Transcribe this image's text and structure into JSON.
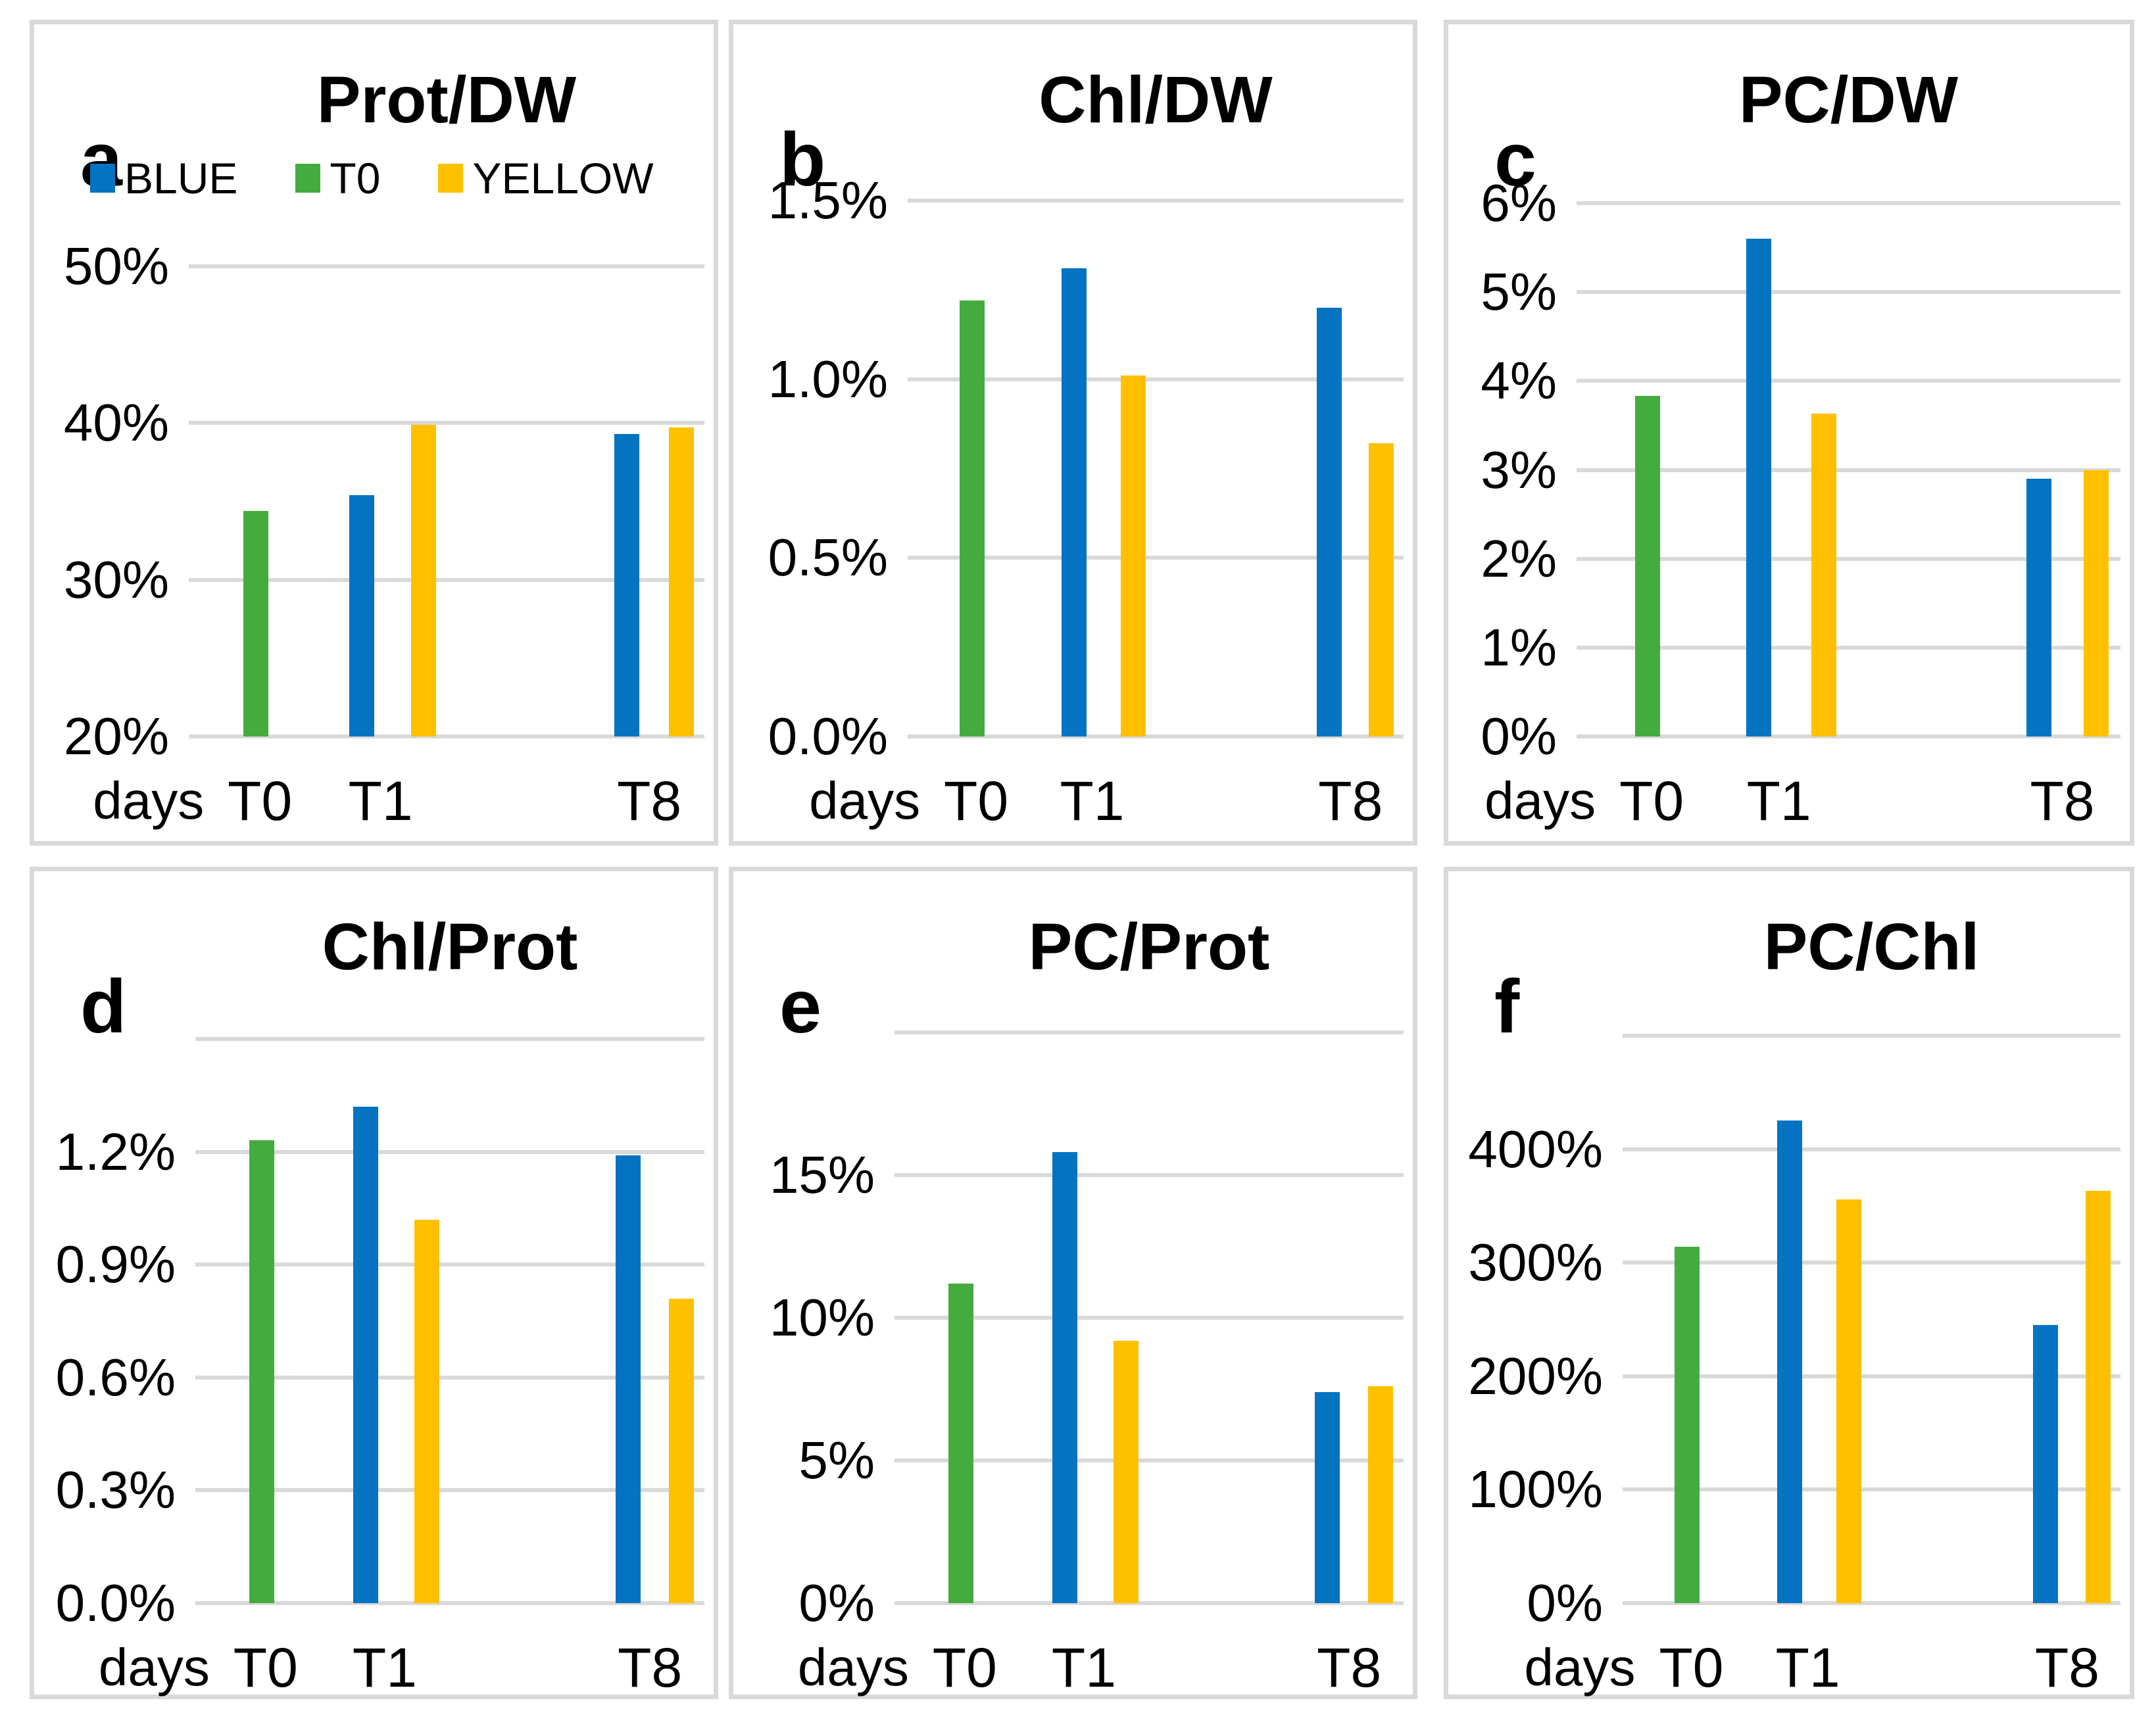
{
  "figure": {
    "background": "#FFFFFF",
    "panel_border_color": "#D9D9D9",
    "gridline_color": "#D9D9D9",
    "text_color": "#000000"
  },
  "series_colors": {
    "BLUE": "#0473C2",
    "T0": "#44AC3F",
    "YELLOW": "#FFC000"
  },
  "legend": {
    "items": [
      {
        "label": "BLUE",
        "series": "BLUE"
      },
      {
        "label": "T0",
        "series": "T0"
      },
      {
        "label": "YELLOW",
        "series": "YELLOW"
      }
    ]
  },
  "chart_data": [
    {
      "id": "a",
      "panel_label": "a",
      "type": "bar",
      "title": "Prot/DW",
      "x_axis_label": "days",
      "categories": [
        "T0",
        "T1",
        "T8"
      ],
      "ylim": [
        20,
        50
      ],
      "grid": true,
      "has_legend": true,
      "yticks": [
        {
          "value": 20,
          "label": "20%"
        },
        {
          "value": 30,
          "label": "30%"
        },
        {
          "value": 40,
          "label": "40%"
        },
        {
          "value": 50,
          "label": "50%"
        }
      ],
      "bars": [
        {
          "series": "T0",
          "category": "T0",
          "value": 34.4
        },
        {
          "series": "BLUE",
          "category": "T1",
          "value": 35.4
        },
        {
          "series": "YELLOW",
          "category": "T1",
          "value": 39.9
        },
        {
          "series": "BLUE",
          "category": "T8",
          "value": 39.3
        },
        {
          "series": "YELLOW",
          "category": "T8",
          "value": 39.7
        }
      ]
    },
    {
      "id": "b",
      "panel_label": "b",
      "type": "bar",
      "title": "Chl/DW",
      "x_axis_label": "days",
      "categories": [
        "T0",
        "T1",
        "T8"
      ],
      "ylim": [
        0,
        1.5
      ],
      "grid": true,
      "has_legend": false,
      "yticks": [
        {
          "value": 0,
          "label": "0.0%"
        },
        {
          "value": 0.5,
          "label": "0.5%"
        },
        {
          "value": 1.0,
          "label": "1.0%"
        },
        {
          "value": 1.5,
          "label": "1.5%"
        }
      ],
      "bars": [
        {
          "series": "T0",
          "category": "T0",
          "value": 1.22
        },
        {
          "series": "BLUE",
          "category": "T1",
          "value": 1.31
        },
        {
          "series": "YELLOW",
          "category": "T1",
          "value": 1.01
        },
        {
          "series": "BLUE",
          "category": "T8",
          "value": 1.2
        },
        {
          "series": "YELLOW",
          "category": "T8",
          "value": 0.82
        }
      ]
    },
    {
      "id": "c",
      "panel_label": "c",
      "type": "bar",
      "title": "PC/DW",
      "x_axis_label": "days",
      "categories": [
        "T0",
        "T1",
        "T8"
      ],
      "ylim": [
        0,
        6
      ],
      "grid": true,
      "has_legend": false,
      "yticks": [
        {
          "value": 0,
          "label": "0%"
        },
        {
          "value": 1,
          "label": "1%"
        },
        {
          "value": 2,
          "label": "2%"
        },
        {
          "value": 3,
          "label": "3%"
        },
        {
          "value": 4,
          "label": "4%"
        },
        {
          "value": 5,
          "label": "5%"
        },
        {
          "value": 6,
          "label": "6%"
        }
      ],
      "bars": [
        {
          "series": "T0",
          "category": "T0",
          "value": 3.83
        },
        {
          "series": "BLUE",
          "category": "T1",
          "value": 5.6
        },
        {
          "series": "YELLOW",
          "category": "T1",
          "value": 3.63
        },
        {
          "series": "BLUE",
          "category": "T8",
          "value": 2.9
        },
        {
          "series": "YELLOW",
          "category": "T8",
          "value": 3.0
        }
      ]
    },
    {
      "id": "d",
      "panel_label": "d",
      "type": "bar",
      "title": "Chl/Prot",
      "x_axis_label": "days",
      "categories": [
        "T0",
        "T1",
        "T8"
      ],
      "ylim": [
        0,
        1.5
      ],
      "grid": true,
      "has_legend": false,
      "yticks": [
        {
          "value": 0,
          "label": "0.0%"
        },
        {
          "value": 0.3,
          "label": "0.3%"
        },
        {
          "value": 0.6,
          "label": "0.6%"
        },
        {
          "value": 0.9,
          "label": "0.9%"
        },
        {
          "value": 1.2,
          "label": "1.2%"
        },
        {
          "value": 1.5,
          "label": ""
        }
      ],
      "bars": [
        {
          "series": "T0",
          "category": "T0",
          "value": 1.23
        },
        {
          "series": "BLUE",
          "category": "T1",
          "value": 1.32
        },
        {
          "series": "YELLOW",
          "category": "T1",
          "value": 1.02
        },
        {
          "series": "BLUE",
          "category": "T8",
          "value": 1.19
        },
        {
          "series": "YELLOW",
          "category": "T8",
          "value": 0.81
        }
      ]
    },
    {
      "id": "e",
      "panel_label": "e",
      "type": "bar",
      "title": "PC/Prot",
      "x_axis_label": "days",
      "categories": [
        "T0",
        "T1",
        "T8"
      ],
      "ylim": [
        0,
        20
      ],
      "grid": true,
      "has_legend": false,
      "yticks": [
        {
          "value": 0,
          "label": "0%"
        },
        {
          "value": 5,
          "label": "5%"
        },
        {
          "value": 10,
          "label": "10%"
        },
        {
          "value": 15,
          "label": "15%"
        },
        {
          "value": 20,
          "label": ""
        }
      ],
      "bars": [
        {
          "series": "T0",
          "category": "T0",
          "value": 11.2
        },
        {
          "series": "BLUE",
          "category": "T1",
          "value": 15.8
        },
        {
          "series": "YELLOW",
          "category": "T1",
          "value": 9.2
        },
        {
          "series": "BLUE",
          "category": "T8",
          "value": 7.4
        },
        {
          "series": "YELLOW",
          "category": "T8",
          "value": 7.6
        }
      ]
    },
    {
      "id": "f",
      "panel_label": "f",
      "type": "bar",
      "title": "PC/Chl",
      "x_axis_label": "days",
      "categories": [
        "T0",
        "T1",
        "T8"
      ],
      "ylim": [
        0,
        500
      ],
      "grid": true,
      "has_legend": false,
      "yticks": [
        {
          "value": 0,
          "label": "0%"
        },
        {
          "value": 100,
          "label": "100%"
        },
        {
          "value": 200,
          "label": "200%"
        },
        {
          "value": 300,
          "label": "300%"
        },
        {
          "value": 400,
          "label": "400%"
        },
        {
          "value": 500,
          "label": ""
        }
      ],
      "bars": [
        {
          "series": "T0",
          "category": "T0",
          "value": 314
        },
        {
          "series": "BLUE",
          "category": "T1",
          "value": 425
        },
        {
          "series": "YELLOW",
          "category": "T1",
          "value": 356
        },
        {
          "series": "BLUE",
          "category": "T8",
          "value": 245
        },
        {
          "series": "YELLOW",
          "category": "T8",
          "value": 363
        }
      ]
    }
  ]
}
